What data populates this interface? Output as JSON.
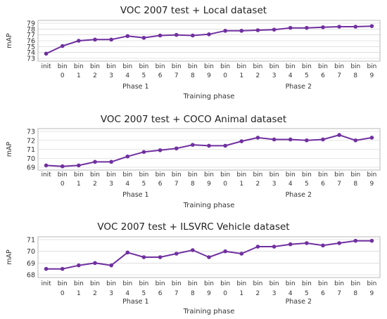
{
  "chart_data": [
    {
      "type": "line",
      "title": "VOC 2007 test + Local dataset",
      "xlabel": "Training phase",
      "ylabel": "mAP",
      "ylim": [
        73,
        79
      ],
      "yticks": [
        73,
        74,
        75,
        76,
        77,
        78,
        79
      ],
      "grid": true,
      "group_labels": [
        "Phase 1",
        "Phase 2"
      ],
      "categories": [
        [
          "init",
          ""
        ],
        [
          "bin",
          "0"
        ],
        [
          "bin",
          "1"
        ],
        [
          "bin",
          "2"
        ],
        [
          "bin",
          "3"
        ],
        [
          "bin",
          "4"
        ],
        [
          "bin",
          "5"
        ],
        [
          "bin",
          "6"
        ],
        [
          "bin",
          "7"
        ],
        [
          "bin",
          "8"
        ],
        [
          "bin",
          "9"
        ],
        [
          "bin",
          "0"
        ],
        [
          "bin",
          "1"
        ],
        [
          "bin",
          "2"
        ],
        [
          "bin",
          "3"
        ],
        [
          "bin",
          "4"
        ],
        [
          "bin",
          "5"
        ],
        [
          "bin",
          "6"
        ],
        [
          "bin",
          "7"
        ],
        [
          "bin",
          "8"
        ],
        [
          "bin",
          "9"
        ]
      ],
      "series": [
        {
          "color": "#7030a0",
          "values": [
            73.8,
            75.1,
            76.0,
            76.2,
            76.2,
            76.8,
            76.5,
            76.9,
            77.0,
            76.9,
            77.1,
            77.7,
            77.7,
            77.8,
            77.9,
            78.2,
            78.2,
            78.3,
            78.4,
            78.4,
            78.5
          ]
        }
      ]
    },
    {
      "type": "line",
      "title": "VOC 2007 test + COCO Animal dataset",
      "xlabel": "Training phase",
      "ylabel": "mAP",
      "ylim": [
        69,
        73
      ],
      "yticks": [
        69,
        70,
        71,
        72,
        73
      ],
      "grid": true,
      "group_labels": [
        "Phase 1",
        "Phase 2"
      ],
      "categories": [
        [
          "init",
          ""
        ],
        [
          "bin",
          "0"
        ],
        [
          "bin",
          "1"
        ],
        [
          "bin",
          "2"
        ],
        [
          "bin",
          "3"
        ],
        [
          "bin",
          "4"
        ],
        [
          "bin",
          "5"
        ],
        [
          "bin",
          "6"
        ],
        [
          "bin",
          "7"
        ],
        [
          "bin",
          "8"
        ],
        [
          "bin",
          "9"
        ],
        [
          "bin",
          "0"
        ],
        [
          "bin",
          "1"
        ],
        [
          "bin",
          "2"
        ],
        [
          "bin",
          "3"
        ],
        [
          "bin",
          "4"
        ],
        [
          "bin",
          "5"
        ],
        [
          "bin",
          "6"
        ],
        [
          "bin",
          "7"
        ],
        [
          "bin",
          "8"
        ],
        [
          "bin",
          "9"
        ]
      ],
      "series": [
        {
          "color": "#7030a0",
          "values": [
            69.2,
            69.1,
            69.2,
            69.6,
            69.6,
            70.2,
            70.7,
            70.9,
            71.1,
            71.5,
            71.4,
            71.4,
            71.9,
            72.3,
            72.1,
            72.1,
            72.0,
            72.1,
            72.6,
            72.0,
            72.3
          ]
        }
      ]
    },
    {
      "type": "line",
      "title": "VOC 2007 test + ILSVRC Vehicle dataset",
      "xlabel": "Training phase",
      "ylabel": "mAP",
      "ylim": [
        68,
        71
      ],
      "yticks": [
        68,
        69,
        70,
        71
      ],
      "grid": true,
      "group_labels": [
        "Phase 1",
        "Phase 2"
      ],
      "categories": [
        [
          "init",
          ""
        ],
        [
          "bin",
          "0"
        ],
        [
          "bin",
          "1"
        ],
        [
          "bin",
          "2"
        ],
        [
          "bin",
          "3"
        ],
        [
          "bin",
          "4"
        ],
        [
          "bin",
          "5"
        ],
        [
          "bin",
          "6"
        ],
        [
          "bin",
          "7"
        ],
        [
          "bin",
          "8"
        ],
        [
          "bin",
          "9"
        ],
        [
          "bin",
          "0"
        ],
        [
          "bin",
          "1"
        ],
        [
          "bin",
          "2"
        ],
        [
          "bin",
          "3"
        ],
        [
          "bin",
          "4"
        ],
        [
          "bin",
          "5"
        ],
        [
          "bin",
          "6"
        ],
        [
          "bin",
          "7"
        ],
        [
          "bin",
          "8"
        ],
        [
          "bin",
          "9"
        ]
      ],
      "series": [
        {
          "color": "#7030a0",
          "values": [
            68.5,
            68.5,
            68.8,
            69.0,
            68.8,
            69.9,
            69.5,
            69.5,
            69.8,
            70.1,
            69.5,
            70.0,
            69.8,
            70.4,
            70.4,
            70.6,
            70.7,
            70.5,
            70.7,
            70.9,
            70.9
          ]
        }
      ]
    }
  ]
}
